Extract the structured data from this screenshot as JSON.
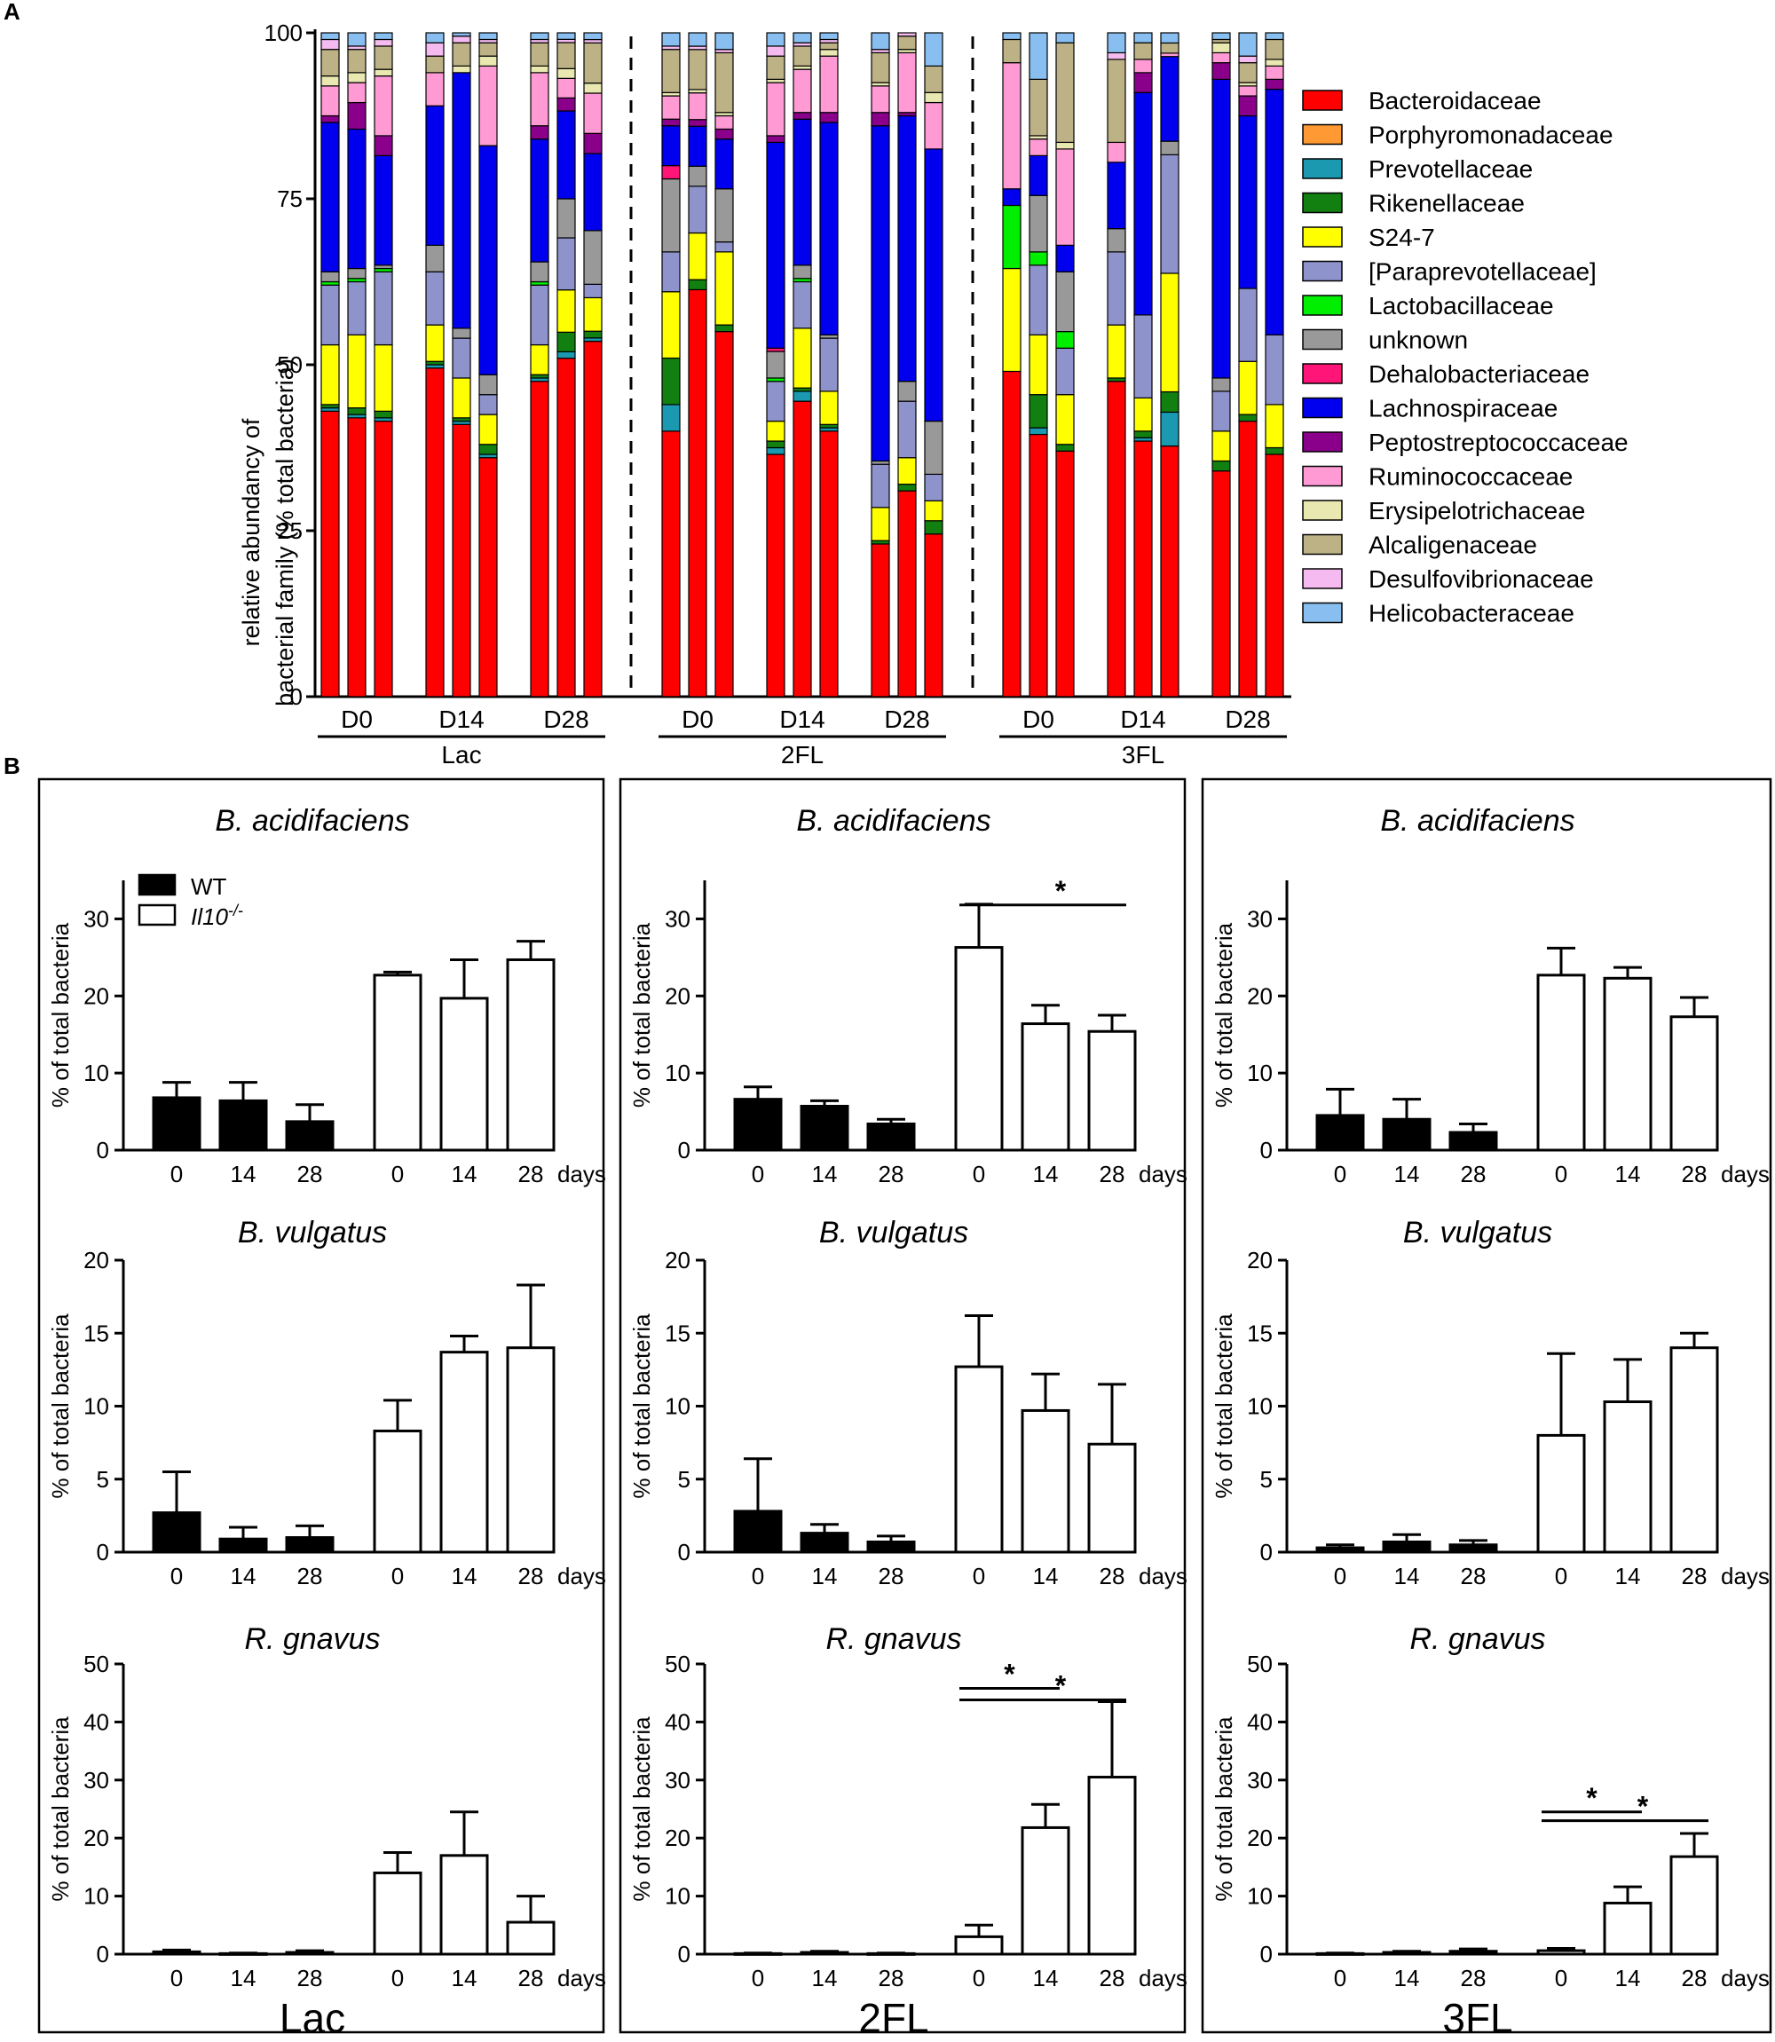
{
  "panel_labels": {
    "a": "A",
    "b": "B"
  },
  "colors": {
    "families": [
      "#ff0000",
      "#ff9933",
      "#1a99b0",
      "#118011",
      "#ffff00",
      "#8f93cc",
      "#00ee00",
      "#999999",
      "#ff1477",
      "#0000ee",
      "#8b008b",
      "#ff9ad5",
      "#e8e8b0",
      "#bdb285",
      "#f5bbf0",
      "#88bff0"
    ],
    "wt": "#000000",
    "ko": "#ffffff"
  },
  "chart_data": [
    {
      "id": "A",
      "type": "bar",
      "stacked": true,
      "ylabel_line1": "relative abundancy of",
      "ylabel_line2": "bacterial family (% total bacteria)",
      "ylim": [
        0,
        100
      ],
      "yticks": [
        "0",
        "25",
        "50",
        "75",
        "100"
      ],
      "timepoints": [
        "D0",
        "D14",
        "D28"
      ],
      "groups": [
        "Lac",
        "2FL",
        "3FL"
      ],
      "legend": [
        "Bacteroidaceae",
        "Porphyromonadaceae",
        "Prevotellaceae",
        "Rikenellaceae",
        "S24-7",
        "[Paraprevotellaceae]",
        "Lactobacillaceae",
        "unknown",
        "Dehalobacteriaceae",
        "Lachnospiraceae",
        "Peptostreptococcaceae",
        "Ruminococcaceae",
        "Erysipelotrichaceae",
        "Alcaligenaceae",
        "Desulfovibrionaceae",
        "Helicobacteraceae"
      ],
      "samples": [
        [
          43,
          0,
          0.5,
          0.5,
          9,
          9,
          0.5,
          1.5,
          0,
          22.5,
          1,
          4.5,
          1.5,
          4,
          1.5,
          1
        ],
        [
          42,
          0,
          0.5,
          1,
          11,
          8,
          0.5,
          1.5,
          0,
          21,
          4,
          3,
          1.5,
          3.5,
          0.5,
          2
        ],
        [
          41.5,
          0,
          0.5,
          1,
          10,
          11,
          0.5,
          0.5,
          0,
          16.5,
          3,
          9,
          1,
          3.5,
          1,
          1
        ],
        [
          49.5,
          0,
          0.5,
          0.5,
          5.5,
          8,
          0,
          4,
          0,
          21,
          0,
          5,
          0,
          2.5,
          2,
          1.5
        ],
        [
          41,
          0,
          0.5,
          0.5,
          6,
          6,
          0,
          1.5,
          0,
          38.5,
          0,
          0,
          1,
          3.5,
          1,
          0.5
        ],
        [
          36,
          0,
          0.5,
          1.5,
          4.5,
          3,
          0,
          3,
          0,
          34.5,
          0,
          12,
          1.5,
          2,
          0.5,
          1
        ],
        [
          47.5,
          0,
          0.5,
          0.5,
          4.5,
          9,
          0.5,
          3,
          0,
          18.5,
          2,
          8,
          1,
          3.5,
          0.5,
          1
        ],
        [
          52,
          0,
          1,
          3,
          6.5,
          8,
          0,
          6,
          0,
          13.5,
          2,
          3,
          1.5,
          4,
          0.5,
          1
        ],
        [
          53,
          0,
          0.5,
          1,
          5,
          2,
          0,
          8,
          0,
          11.5,
          3,
          6,
          1.5,
          6,
          0.5,
          1
        ],
        [
          40,
          0,
          4,
          7,
          10,
          6,
          0,
          11,
          2,
          6,
          1,
          3.5,
          0.5,
          6.5,
          0.5,
          2
        ],
        [
          61,
          0,
          0,
          1.5,
          7,
          7,
          0,
          3,
          0,
          6,
          1,
          4,
          0.5,
          6,
          0.5,
          2
        ],
        [
          55,
          0,
          0,
          1,
          11,
          1.5,
          0,
          8,
          0,
          7.5,
          1.5,
          2,
          0.5,
          9,
          0.5,
          2.5
        ],
        [
          36.5,
          0,
          1,
          1,
          3,
          6,
          0.5,
          4,
          0.5,
          31,
          1,
          8,
          0.5,
          3.5,
          1.5,
          2
        ],
        [
          44.5,
          0,
          1.5,
          0.5,
          9,
          7,
          0.5,
          2,
          0,
          22,
          1,
          6.5,
          0.5,
          3,
          0.5,
          1.5
        ],
        [
          40,
          0,
          0.5,
          0.5,
          5,
          8,
          0,
          0.5,
          0,
          32,
          1.5,
          8.5,
          1,
          1,
          0.5,
          1
        ],
        [
          23,
          0,
          0,
          0.5,
          5,
          6.5,
          0,
          0.5,
          0,
          50.5,
          2,
          4,
          0.5,
          4.5,
          0.5,
          2.5
        ],
        [
          31,
          0,
          0,
          1,
          4,
          8.5,
          0,
          3,
          0,
          40,
          0.5,
          9,
          0.5,
          2,
          0.5,
          0
        ],
        [
          24.5,
          0,
          0,
          2,
          3,
          4,
          0,
          8,
          0,
          41,
          0,
          7,
          1.5,
          4,
          0,
          5
        ]
      ],
      "sample_ranges_order": "per sample: 16 family values listed in legend order, bottom to top"
    },
    {
      "id": "A-3FL",
      "type": "bar",
      "stacked": true,
      "samples": [
        [
          49,
          0,
          0,
          0,
          15.5,
          0,
          9.5,
          0,
          0,
          2.5,
          0,
          19,
          0,
          3.5,
          0,
          1
        ],
        [
          39.5,
          0,
          1,
          5,
          9,
          10.5,
          2,
          8.5,
          0,
          6,
          0,
          2.5,
          0.5,
          8.5,
          0,
          7
        ],
        [
          37,
          0,
          0,
          1,
          7.5,
          7,
          2.5,
          9,
          0,
          4,
          0,
          14.5,
          1,
          15,
          0,
          1.5
        ],
        [
          47.5,
          0,
          0,
          0.5,
          8,
          11,
          0,
          3.5,
          0,
          10,
          0,
          3,
          0,
          12.5,
          1,
          3
        ],
        [
          38.5,
          0,
          0.5,
          1,
          5,
          12.5,
          0,
          0,
          0,
          33.5,
          3,
          2,
          0,
          2.5,
          0,
          1.5
        ],
        [
          37,
          0,
          5,
          3,
          17.5,
          17.5,
          0,
          2,
          0,
          12.5,
          0,
          0.5,
          0,
          1.5,
          0,
          1.5
        ],
        [
          34,
          0,
          0,
          1.5,
          4.5,
          6,
          0,
          2,
          0,
          45,
          2.5,
          1.5,
          1.5,
          0.5,
          0,
          1
        ],
        [
          41.5,
          0,
          0,
          1,
          8,
          11,
          0,
          0,
          0,
          26,
          3,
          1.5,
          0.5,
          3,
          1,
          3.5
        ],
        [
          36.5,
          0,
          0,
          1,
          6.5,
          10.5,
          0,
          0,
          0,
          37,
          1.5,
          2,
          1,
          3,
          0,
          1
        ]
      ]
    },
    {
      "id": "B",
      "type": "bar",
      "legend": {
        "wt": "WT",
        "ko_main": "Il10",
        "ko_sup": "-/-"
      },
      "ylabel": "% of total bacteria",
      "categories": [
        "0",
        "14",
        "28",
        "0",
        "14",
        "28"
      ],
      "days_label": "days",
      "groups": [
        "Lac",
        "2FL",
        "3FL"
      ],
      "species": [
        {
          "title": "B. acidifaciens",
          "ylim": [
            0,
            35
          ],
          "yticks": [
            "0",
            "10",
            "20",
            "30"
          ]
        },
        {
          "title": "B. vulgatus",
          "ylim": [
            0,
            20
          ],
          "yticks": [
            "0",
            "5",
            "10",
            "15",
            "20"
          ]
        },
        {
          "title": "R. gnavus",
          "ylim": [
            0,
            50
          ],
          "yticks": [
            "0",
            "10",
            "20",
            "30",
            "40",
            "50"
          ]
        }
      ],
      "panels": [
        {
          "group": "Lac",
          "values": [
            [
              [
                6.8,
                2.0
              ],
              [
                6.4,
                2.4
              ],
              [
                3.7,
                2.2
              ],
              [
                22.7,
                0.4
              ],
              [
                19.7,
                5.0
              ],
              [
                24.7,
                2.4
              ]
            ],
            [
              [
                2.7,
                2.8
              ],
              [
                0.9,
                0.8
              ],
              [
                1.0,
                0.8
              ],
              [
                8.3,
                2.1
              ],
              [
                13.7,
                1.1
              ],
              [
                14.0,
                4.3
              ]
            ],
            [
              [
                0.4,
                0.3
              ],
              [
                0.1,
                0.1
              ],
              [
                0.3,
                0.3
              ],
              [
                14.0,
                3.5
              ],
              [
                17.0,
                7.5
              ],
              [
                5.5,
                4.5
              ]
            ]
          ],
          "sig": [
            [],
            [],
            []
          ]
        },
        {
          "group": "2FL",
          "values": [
            [
              [
                6.6,
                1.6
              ],
              [
                5.7,
                0.7
              ],
              [
                3.4,
                0.6
              ],
              [
                26.3,
                5.6
              ],
              [
                16.4,
                2.4
              ],
              [
                15.4,
                2.1
              ]
            ],
            [
              [
                2.8,
                3.6
              ],
              [
                1.3,
                0.6
              ],
              [
                0.7,
                0.4
              ],
              [
                12.7,
                3.5
              ],
              [
                9.7,
                2.5
              ],
              [
                7.4,
                4.1
              ]
            ],
            [
              [
                0.1,
                0.1
              ],
              [
                0.3,
                0.2
              ],
              [
                0.1,
                0.1
              ],
              [
                3.0,
                2.0
              ],
              [
                21.8,
                4.0
              ],
              [
                30.5,
                13.0
              ]
            ]
          ],
          "sig": [
            [
              {
                "from": 3,
                "to": 5,
                "y": 31.8,
                "label": "*"
              }
            ],
            [],
            [
              {
                "from": 3,
                "to": 4,
                "y": 45.8,
                "label": "*"
              },
              {
                "from": 3,
                "to": 5,
                "y": 43.8,
                "label": "*"
              }
            ]
          ]
        },
        {
          "group": "3FL",
          "values": [
            [
              [
                4.5,
                3.4
              ],
              [
                4.0,
                2.6
              ],
              [
                2.3,
                1.1
              ],
              [
                22.7,
                3.5
              ],
              [
                22.3,
                1.4
              ],
              [
                17.3,
                2.5
              ]
            ],
            [
              [
                0.3,
                0.2
              ],
              [
                0.7,
                0.5
              ],
              [
                0.5,
                0.3
              ],
              [
                8.0,
                5.6
              ],
              [
                10.3,
                2.9
              ],
              [
                14.0,
                1.0
              ]
            ],
            [
              [
                0.1,
                0.1
              ],
              [
                0.3,
                0.2
              ],
              [
                0.5,
                0.4
              ],
              [
                0.6,
                0.4
              ],
              [
                8.8,
                2.8
              ],
              [
                16.8,
                4.0
              ]
            ]
          ],
          "sig": [
            [],
            [],
            [
              {
                "from": 3,
                "to": 4,
                "y": 24.5,
                "label": "*"
              },
              {
                "from": 3,
                "to": 5,
                "y": 23.0,
                "label": "*"
              }
            ]
          ]
        }
      ]
    }
  ]
}
